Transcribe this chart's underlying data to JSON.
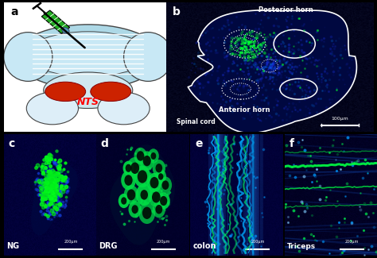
{
  "panel_labels": [
    "a",
    "b",
    "c",
    "d",
    "e",
    "f"
  ],
  "bg_color": "black",
  "label_c": "NG",
  "label_d": "DRG",
  "label_e": "colon",
  "label_f": "Triceps",
  "scalebar_c": "200μm",
  "scalebar_d": "200μm",
  "scalebar_e": "200μm",
  "scalebar_f": "200μm",
  "scalebar_b": "100μm",
  "text_b1": "Posterior horn",
  "text_b2": "Anterior horn",
  "text_b3": "Spinal cord",
  "nts_label": "NTS",
  "panel_a_bg": "white",
  "brain_fill": "#add8e6",
  "brain_inner": "#c8e6f0",
  "brain_edge": "#444444",
  "nts_red": "#cc2200",
  "syringe_green": "#22aa22",
  "syringe_blue": "#5599bb",
  "green_bright": "#00ff44",
  "green_mid": "#00cc33",
  "tissue_dark": "#000033",
  "tissue_blue": "#000055"
}
